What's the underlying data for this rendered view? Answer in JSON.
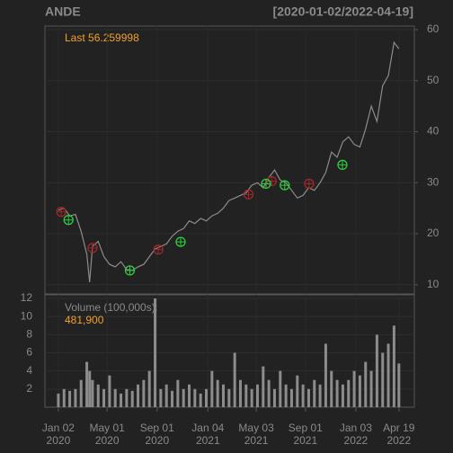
{
  "chart_data": [
    {
      "type": "line",
      "title": "ANDE",
      "subtitle": "[2020-01-02/2022-04-19]",
      "annotation": "Last 56.259998",
      "xlim": [
        "2019-11-30",
        "2022-05-27"
      ],
      "x": [
        "2020-01-02",
        "2020-01-16",
        "2020-01-30",
        "2020-02-13",
        "2020-02-27",
        "2020-03-12",
        "2020-03-19",
        "2020-03-26",
        "2020-04-09",
        "2020-04-23",
        "2020-05-07",
        "2020-05-21",
        "2020-06-04",
        "2020-06-18",
        "2020-07-02",
        "2020-07-16",
        "2020-07-30",
        "2020-08-13",
        "2020-08-27",
        "2020-09-10",
        "2020-09-24",
        "2020-10-08",
        "2020-10-22",
        "2020-11-05",
        "2020-11-19",
        "2020-12-03",
        "2020-12-17",
        "2020-12-31",
        "2021-01-14",
        "2021-01-28",
        "2021-02-11",
        "2021-02-25",
        "2021-03-11",
        "2021-03-25",
        "2021-04-08",
        "2021-04-22",
        "2021-05-06",
        "2021-05-20",
        "2021-06-03",
        "2021-06-17",
        "2021-07-01",
        "2021-07-15",
        "2021-07-29",
        "2021-08-12",
        "2021-08-26",
        "2021-09-09",
        "2021-09-23",
        "2021-10-07",
        "2021-10-21",
        "2021-11-04",
        "2021-11-18",
        "2021-12-02",
        "2021-12-16",
        "2021-12-30",
        "2022-01-13",
        "2022-01-27",
        "2022-02-10",
        "2022-02-24",
        "2022-03-10",
        "2022-03-24",
        "2022-04-07",
        "2022-04-19"
      ],
      "series": [
        {
          "color": "#8c8c8c",
          "values": [
            24.6,
            25.0,
            23.5,
            23.8,
            20.5,
            16.0,
            10.5,
            17.5,
            18.5,
            15.5,
            14.0,
            13.5,
            14.5,
            13.0,
            12.8,
            13.5,
            14.0,
            15.5,
            17.0,
            17.5,
            18.0,
            19.5,
            20.5,
            21.0,
            22.5,
            22.0,
            23.0,
            22.5,
            23.5,
            24.0,
            25.0,
            26.5,
            27.0,
            27.5,
            28.0,
            29.5,
            30.0,
            29.0,
            31.0,
            32.5,
            30.5,
            30.0,
            28.5,
            27.0,
            27.5,
            29.0,
            28.5,
            30.0,
            32.0,
            36.0,
            35.0,
            38.0,
            39.0,
            37.5,
            37.0,
            40.5,
            45.0,
            42.0,
            49.0,
            51.0,
            57.5,
            56.26
          ]
        }
      ],
      "markers": [
        {
          "color": "#a02828",
          "x": [
            "2020-01-09",
            "2020-03-26",
            "2020-09-04",
            "2021-04-14",
            "2021-06-10",
            "2021-09-10"
          ],
          "values": [
            24.3,
            17.2,
            16.9,
            27.7,
            30.3,
            29.8
          ]
        },
        {
          "color": "#2ecc40",
          "x": [
            "2020-01-27",
            "2020-06-26",
            "2020-10-29",
            "2021-05-27",
            "2021-07-12",
            "2021-12-01"
          ],
          "values": [
            22.7,
            12.8,
            18.4,
            29.8,
            29.5,
            33.5
          ]
        }
      ],
      "ylim": [
        8.2,
        60.7
      ],
      "yticks": [
        10,
        20,
        30,
        40,
        50,
        60
      ],
      "grid": true
    },
    {
      "type": "bar",
      "annotation": "Volume (100,000s):",
      "color": "#8c8c8c",
      "xlim": [
        "2019-11-30",
        "2022-05-27"
      ],
      "x": [
        "2020-01-02",
        "2020-01-16",
        "2020-01-30",
        "2020-02-13",
        "2020-02-27",
        "2020-03-12",
        "2020-03-19",
        "2020-03-26",
        "2020-04-09",
        "2020-04-23",
        "2020-05-07",
        "2020-05-21",
        "2020-06-04",
        "2020-06-18",
        "2020-07-02",
        "2020-07-16",
        "2020-07-30",
        "2020-08-13",
        "2020-08-27",
        "2020-09-10",
        "2020-09-24",
        "2020-10-08",
        "2020-10-22",
        "2020-11-05",
        "2020-11-19",
        "2020-12-03",
        "2020-12-17",
        "2020-12-31",
        "2021-01-14",
        "2021-01-28",
        "2021-02-11",
        "2021-02-25",
        "2021-03-11",
        "2021-03-25",
        "2021-04-08",
        "2021-04-22",
        "2021-05-06",
        "2021-05-20",
        "2021-06-03",
        "2021-06-17",
        "2021-07-01",
        "2021-07-15",
        "2021-07-29",
        "2021-08-12",
        "2021-08-26",
        "2021-09-09",
        "2021-09-23",
        "2021-10-07",
        "2021-10-21",
        "2021-11-04",
        "2021-11-18",
        "2021-12-02",
        "2021-12-16",
        "2021-12-30",
        "2022-01-13",
        "2022-01-27",
        "2022-02-10",
        "2022-02-24",
        "2022-03-10",
        "2022-03-24",
        "2022-04-07",
        "2022-04-19"
      ],
      "values": [
        1.5,
        2,
        1.8,
        2,
        3,
        5,
        4,
        3,
        2.5,
        2,
        3.5,
        2,
        1.5,
        2,
        1.8,
        2.5,
        3,
        4,
        12,
        2,
        2.5,
        1.8,
        3,
        2,
        2.5,
        2,
        1.5,
        2,
        4,
        3,
        2.5,
        2,
        6,
        3,
        2.5,
        2,
        2.5,
        4.5,
        3,
        2,
        4,
        2.5,
        2,
        3.5,
        2.5,
        2,
        3,
        2.5,
        7,
        4,
        3,
        2.5,
        3,
        4,
        3.5,
        5,
        4,
        8,
        6,
        7,
        9,
        4.819
      ],
      "value_labels": [
        null,
        null,
        null,
        null,
        null,
        null,
        null,
        null,
        null,
        null,
        null,
        null,
        null,
        null,
        null,
        null,
        null,
        null,
        null,
        null,
        null,
        null,
        null,
        null,
        null,
        null,
        null,
        null,
        null,
        null,
        null,
        null,
        null,
        null,
        null,
        null,
        null,
        null,
        null,
        null,
        null,
        null,
        null,
        null,
        null,
        null,
        null,
        null,
        null,
        null,
        null,
        null,
        null,
        null,
        null,
        null,
        null,
        null,
        null,
        null,
        null,
        "481,900"
      ],
      "ylim": [
        0,
        12.4
      ],
      "yticks": [
        2,
        4,
        6,
        8,
        10,
        12
      ],
      "grid": true,
      "xticks": [
        {
          "value": "2020-01-02",
          "label": "Jan 02\n2020"
        },
        {
          "value": "2020-05-01",
          "label": "May 01\n2020"
        },
        {
          "value": "2020-09-01",
          "label": "Sep 01\n2020"
        },
        {
          "value": "2021-01-04",
          "label": "Jan 04\n2021"
        },
        {
          "value": "2021-05-03",
          "label": "May 03\n2021"
        },
        {
          "value": "2021-09-01",
          "label": "Sep 01\n2021"
        },
        {
          "value": "2022-01-03",
          "label": "Jan 03\n2022"
        },
        {
          "value": "2022-04-19",
          "label": "Apr 19\n2022"
        }
      ]
    }
  ]
}
